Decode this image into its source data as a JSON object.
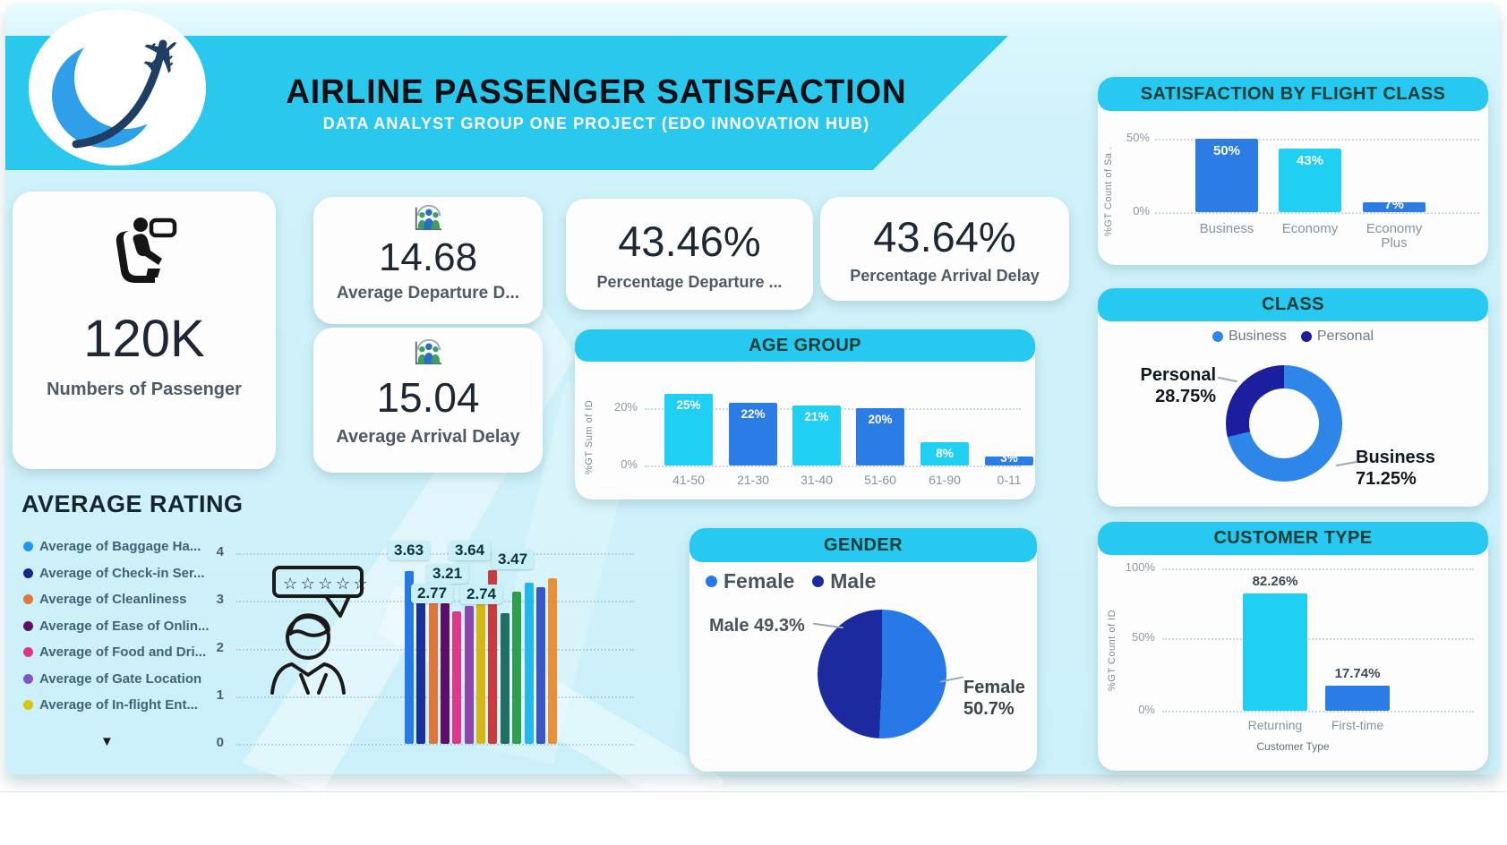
{
  "header": {
    "title": "AIRLINE PASSENGER SATISFACTION",
    "subtitle": "DATA ANALYST GROUP ONE PROJECT (EDO INNOVATION HUB)"
  },
  "kpis": {
    "passengers": {
      "value": "120K",
      "label": "Numbers of Passenger",
      "icon": "passenger-seat-icon"
    },
    "avg_departure_delay": {
      "value": "14.68",
      "label": "Average Departure D...",
      "icon": "boarding-group-icon"
    },
    "avg_arrival_delay": {
      "value": "15.04",
      "label": "Average Arrival Delay",
      "icon": "boarding-group-icon"
    },
    "pct_departure_delay": {
      "value": "43.46%",
      "label": "Percentage Departure ..."
    },
    "pct_arrival_delay": {
      "value": "43.64%",
      "label": "Percentage  Arrival Delay"
    }
  },
  "colors": {
    "accent_cyan": "#27c9f1",
    "bar_blue": "#2b7ce5",
    "bar_cyan": "#1fd0f2",
    "navy": "#1b2a9e"
  },
  "chart_data": [
    {
      "id": "flight_class",
      "type": "bar",
      "title": "SATISFACTION BY FLIGHT CLASS",
      "ylabel": "%GT Count of Sa .",
      "yticks": [
        "50%",
        "0%"
      ],
      "ymax": 50,
      "grid": true,
      "legend_position": "none",
      "categories": [
        "Business",
        "Economy",
        "Economy Plus"
      ],
      "values": [
        50,
        43,
        7
      ],
      "value_labels": [
        "50%",
        "43%",
        "7%"
      ],
      "colors": [
        "#2b7ce5",
        "#1fd0f2",
        "#2b7ce5"
      ]
    },
    {
      "id": "age_group",
      "type": "bar",
      "title": "AGE GROUP",
      "ylabel": "%GT Sum of ID",
      "yticks": [
        "20%",
        "0%"
      ],
      "ymax": 25,
      "grid": true,
      "legend_position": "none",
      "categories": [
        "41-50",
        "21-30",
        "31-40",
        "51-60",
        "61-90",
        "0-11"
      ],
      "values": [
        25,
        22,
        21,
        20,
        8,
        3
      ],
      "value_labels": [
        "25%",
        "22%",
        "21%",
        "20%",
        "8%",
        "3%"
      ],
      "colors": [
        "#1fd0f2",
        "#2b7ce5",
        "#1fd0f2",
        "#2b7ce5",
        "#1fd0f2",
        "#2b7ce5"
      ]
    },
    {
      "id": "class",
      "type": "donut",
      "title": "CLASS",
      "legend_position": "top",
      "slices": [
        {
          "label": "Business",
          "pct": "71.25%",
          "value": 71.25,
          "color": "#2e86e8"
        },
        {
          "label": "Personal",
          "pct": "28.75%",
          "value": 28.75,
          "color": "#1b1f9e"
        }
      ]
    },
    {
      "id": "average_rating",
      "type": "bar",
      "title": "AVERAGE RATING",
      "ylim": [
        0,
        4
      ],
      "yticks": [
        "4",
        "3",
        "2",
        "1",
        "0"
      ],
      "grid": true,
      "legend_position": "left",
      "expand_arrow": "▼",
      "legend": [
        {
          "label": "Average of Baggage Ha...",
          "color": "#2196f3"
        },
        {
          "label": "Average of Check-in Ser...",
          "color": "#1a2486"
        },
        {
          "label": "Average of Cleanliness",
          "color": "#e0763a"
        },
        {
          "label": "Average of Ease of Onlin...",
          "color": "#5c0f68"
        },
        {
          "label": "Average of Food and Dri...",
          "color": "#e0368c"
        },
        {
          "label": "Average of Gate Location",
          "color": "#7e57c2"
        },
        {
          "label": "Average of In-flight Ent...",
          "color": "#d6c60e"
        }
      ],
      "data_labels": [
        "3.63",
        "3.21",
        "2.77",
        "3.64",
        "2.74",
        "3.47"
      ],
      "bars": [
        {
          "color": "#2779e8",
          "value": 3.63
        },
        {
          "color": "#1b2f9e",
          "value": 3.21
        },
        {
          "color": "#e0763a",
          "value": 3.2
        },
        {
          "color": "#5c0f68",
          "value": 2.95
        },
        {
          "color": "#e0368c",
          "value": 2.77
        },
        {
          "color": "#8e44ad",
          "value": 2.9
        },
        {
          "color": "#d4b614",
          "value": 3.3
        },
        {
          "color": "#cc3b3b",
          "value": 3.64
        },
        {
          "color": "#1f6e62",
          "value": 2.74
        },
        {
          "color": "#2e9e4f",
          "value": 3.2
        },
        {
          "color": "#22b8ee",
          "value": 3.38
        },
        {
          "color": "#3a56c4",
          "value": 3.28
        },
        {
          "color": "#e88f3a",
          "value": 3.47
        }
      ]
    },
    {
      "id": "gender",
      "type": "pie",
      "title": "GENDER",
      "legend_position": "top-left",
      "slices": [
        {
          "label": "Female",
          "pct": "50.7%",
          "value": 50.7,
          "color": "#2779e8"
        },
        {
          "label": "Male",
          "pct": "49.3%",
          "value": 49.3,
          "color": "#1b2a9e"
        }
      ]
    },
    {
      "id": "customer_type",
      "type": "bar",
      "title": "CUSTOMER TYPE",
      "xlabel": "Customer Type",
      "ylabel": "%GT Count of ID",
      "yticks": [
        "100%",
        "50%",
        "0%"
      ],
      "ymax": 100,
      "grid": true,
      "legend_position": "none",
      "categories": [
        "Returning",
        "First-time"
      ],
      "values": [
        82.26,
        17.74
      ],
      "value_labels": [
        "82.26%",
        "17.74%"
      ],
      "colors": [
        "#1fd0f2",
        "#2b7ce5"
      ]
    }
  ]
}
